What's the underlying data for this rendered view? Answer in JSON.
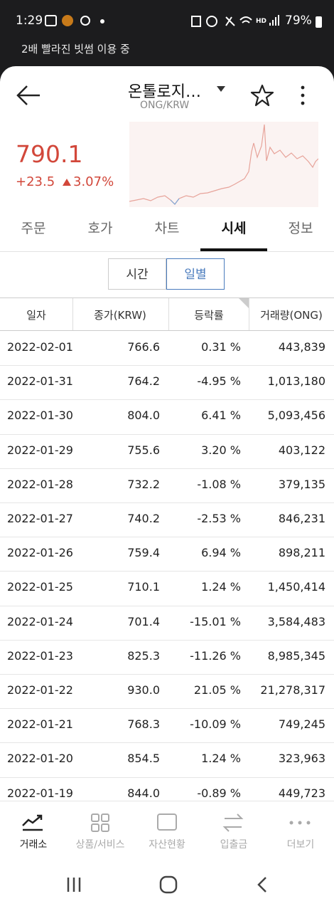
{
  "status_bar": {
    "time": "1:29",
    "battery": "79%"
  },
  "banner": "2배 빨라진 빗썸 이용 중",
  "header": {
    "title": "온톨로지…",
    "pair": "ONG/KRW"
  },
  "price": {
    "current": "790.1",
    "change": "+23.5",
    "change_rate": "3.07%"
  },
  "tabs": [
    "주문",
    "호가",
    "차트",
    "시세",
    "정보"
  ],
  "active_tab": 3,
  "toggle": [
    "시간",
    "일별"
  ],
  "active_toggle": 1,
  "table": {
    "columns": [
      "일자",
      "종가(KRW)",
      "등락률",
      "거래량(ONG)"
    ],
    "rows": [
      [
        "2022-02-01",
        "766.6",
        "0.31 %",
        "443,839"
      ],
      [
        "2022-01-31",
        "764.2",
        "-4.95 %",
        "1,013,180"
      ],
      [
        "2022-01-30",
        "804.0",
        "6.41 %",
        "5,093,456"
      ],
      [
        "2022-01-29",
        "755.6",
        "3.20 %",
        "403,122"
      ],
      [
        "2022-01-28",
        "732.2",
        "-1.08 %",
        "379,135"
      ],
      [
        "2022-01-27",
        "740.2",
        "-2.53 %",
        "846,231"
      ],
      [
        "2022-01-26",
        "759.4",
        "6.94 %",
        "898,211"
      ],
      [
        "2022-01-25",
        "710.1",
        "1.24 %",
        "1,450,414"
      ],
      [
        "2022-01-24",
        "701.4",
        "-15.01 %",
        "3,584,483"
      ],
      [
        "2022-01-23",
        "825.3",
        "-11.26 %",
        "8,985,345"
      ],
      [
        "2022-01-22",
        "930.0",
        "21.05 %",
        "21,278,317"
      ],
      [
        "2022-01-21",
        "768.3",
        "-10.09 %",
        "749,245"
      ],
      [
        "2022-01-20",
        "854.5",
        "1.24 %",
        "323,963"
      ],
      [
        "2022-01-19",
        "844.0",
        "-0.89 %",
        "449,723"
      ]
    ]
  },
  "bottom_nav": [
    "거래소",
    "상품/서비스",
    "자산현황",
    "입출금",
    "더보기"
  ]
}
